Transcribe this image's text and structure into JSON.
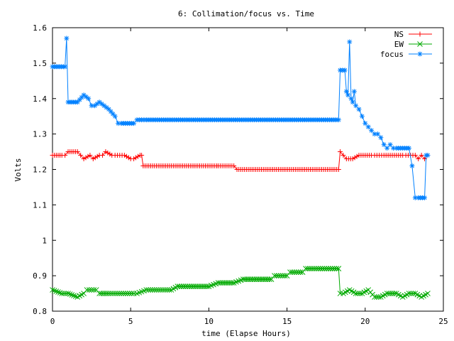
{
  "chart_data": {
    "type": "line",
    "title": "6: Collimation/focus vs. Time",
    "xlabel": "time (Elapse Hours)",
    "ylabel": "Volts",
    "xlim": [
      0,
      25
    ],
    "ylim": [
      0.8,
      1.6
    ],
    "xticks": [
      0,
      5,
      10,
      15,
      20,
      25
    ],
    "yticks": [
      0.8,
      0.9,
      1,
      1.1,
      1.2,
      1.3,
      1.4,
      1.5,
      1.6
    ],
    "xtick_labels": [
      "0",
      "5",
      "10",
      "15",
      "20",
      "25"
    ],
    "ytick_labels": [
      "0.8",
      "0.9",
      "1",
      "1.1",
      "1.2",
      "1.3",
      "1.4",
      "1.5",
      "1.6"
    ],
    "grid": false,
    "legend_position": "top-right",
    "series": [
      {
        "name": "NS",
        "color": "#ff0000",
        "marker": "plus",
        "x": [
          0,
          0.6,
          0.8,
          1.0,
          1.6,
          1.8,
          2.0,
          2.4,
          2.6,
          3.0,
          3.2,
          3.4,
          3.8,
          4.0,
          4.6,
          5.0,
          5.2,
          5.6,
          5.7,
          5.8,
          10.5,
          10.6,
          11.6,
          11.8,
          18.3,
          18.4,
          18.6,
          18.8,
          19.2,
          19.6,
          20.4,
          20.6,
          21.2,
          21.6,
          22.4,
          22.6,
          23.2,
          23.4,
          23.6,
          23.8,
          24.0
        ],
        "y": [
          1.24,
          1.24,
          1.24,
          1.25,
          1.25,
          1.24,
          1.23,
          1.24,
          1.23,
          1.24,
          1.24,
          1.25,
          1.24,
          1.24,
          1.24,
          1.23,
          1.23,
          1.24,
          1.24,
          1.21,
          1.21,
          1.21,
          1.21,
          1.2,
          1.2,
          1.25,
          1.24,
          1.23,
          1.23,
          1.24,
          1.24,
          1.24,
          1.24,
          1.24,
          1.24,
          1.24,
          1.24,
          1.23,
          1.24,
          1.23,
          1.24
        ]
      },
      {
        "name": "EW",
        "color": "#00aa00",
        "marker": "cross",
        "x": [
          0,
          0.6,
          1.0,
          1.6,
          2.0,
          2.2,
          2.8,
          3.0,
          3.6,
          4.0,
          4.4,
          5.2,
          5.4,
          6.0,
          6.4,
          7.6,
          8.0,
          10.0,
          10.6,
          11.6,
          12.2,
          14.0,
          14.2,
          15.0,
          15.2,
          16.0,
          16.2,
          17.0,
          18.3,
          18.4,
          18.6,
          19.0,
          19.4,
          19.8,
          20.2,
          20.6,
          21.0,
          21.4,
          22.0,
          22.4,
          22.8,
          23.2,
          23.6,
          24.0
        ],
        "y": [
          0.86,
          0.85,
          0.85,
          0.84,
          0.85,
          0.86,
          0.86,
          0.85,
          0.85,
          0.85,
          0.85,
          0.85,
          0.85,
          0.86,
          0.86,
          0.86,
          0.87,
          0.87,
          0.88,
          0.88,
          0.89,
          0.89,
          0.9,
          0.9,
          0.91,
          0.91,
          0.92,
          0.92,
          0.92,
          0.85,
          0.85,
          0.86,
          0.85,
          0.85,
          0.86,
          0.84,
          0.84,
          0.85,
          0.85,
          0.84,
          0.85,
          0.85,
          0.84,
          0.85
        ]
      },
      {
        "name": "focus",
        "color": "#0080ff",
        "marker": "star",
        "x": [
          0,
          0.7,
          0.8,
          0.9,
          1.0,
          1.6,
          2.0,
          2.3,
          2.5,
          2.7,
          3.0,
          3.3,
          3.6,
          4.0,
          4.2,
          4.4,
          5.2,
          5.4,
          6.0,
          10.0,
          15.0,
          18.2,
          18.3,
          18.4,
          18.7,
          18.8,
          18.9,
          19.0,
          19.1,
          19.2,
          19.3,
          19.4,
          19.6,
          19.8,
          20.0,
          20.2,
          20.4,
          20.6,
          20.8,
          21.0,
          21.2,
          21.4,
          21.6,
          21.8,
          22.0,
          22.4,
          22.8,
          23.0,
          23.2,
          23.4,
          23.8,
          23.9,
          24.0
        ],
        "y": [
          1.49,
          1.49,
          1.49,
          1.57,
          1.39,
          1.39,
          1.41,
          1.4,
          1.38,
          1.38,
          1.39,
          1.38,
          1.37,
          1.35,
          1.33,
          1.33,
          1.33,
          1.34,
          1.34,
          1.34,
          1.34,
          1.34,
          1.34,
          1.48,
          1.48,
          1.42,
          1.41,
          1.56,
          1.4,
          1.39,
          1.42,
          1.38,
          1.37,
          1.35,
          1.33,
          1.32,
          1.31,
          1.3,
          1.3,
          1.29,
          1.27,
          1.26,
          1.27,
          1.26,
          1.26,
          1.26,
          1.26,
          1.21,
          1.12,
          1.12,
          1.12,
          1.24,
          1.24
        ]
      }
    ]
  }
}
